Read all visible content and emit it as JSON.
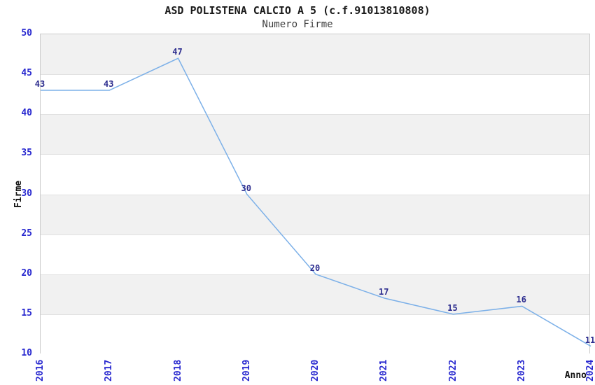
{
  "header": {
    "title": "ASD POLISTENA CALCIO A 5 (c.f.91013810808)",
    "subtitle": "Numero Firme"
  },
  "chart_data": {
    "type": "line",
    "title": "ASD POLISTENA CALCIO A 5 (c.f.91013810808)",
    "subtitle": "Numero Firme",
    "xlabel": "Anno",
    "ylabel": "Firme",
    "categories": [
      "2016",
      "2017",
      "2018",
      "2019",
      "2020",
      "2021",
      "2022",
      "2023",
      "2024"
    ],
    "series": [
      {
        "name": "Numero Firme",
        "values": [
          43,
          43,
          47,
          30,
          20,
          17,
          15,
          16,
          11
        ]
      }
    ],
    "ylim": [
      10,
      50
    ],
    "yticks": [
      10,
      15,
      20,
      25,
      30,
      35,
      40,
      45,
      50
    ],
    "grid": "horizontal-bands",
    "legend_position": "none",
    "data_labels_visible": true,
    "colors": {
      "line": "#7cb0e8",
      "tick_label": "#2727cf",
      "data_label": "#2c2c8e",
      "band_gray": "#f1f1f1",
      "band_white": "#ffffff",
      "gridline": "#e1e1e1",
      "plot_border": "#cccccc",
      "title_text": "#1a1a1a",
      "subtitle_text": "#3c3c3c",
      "axis_title_text": "#111111"
    }
  }
}
